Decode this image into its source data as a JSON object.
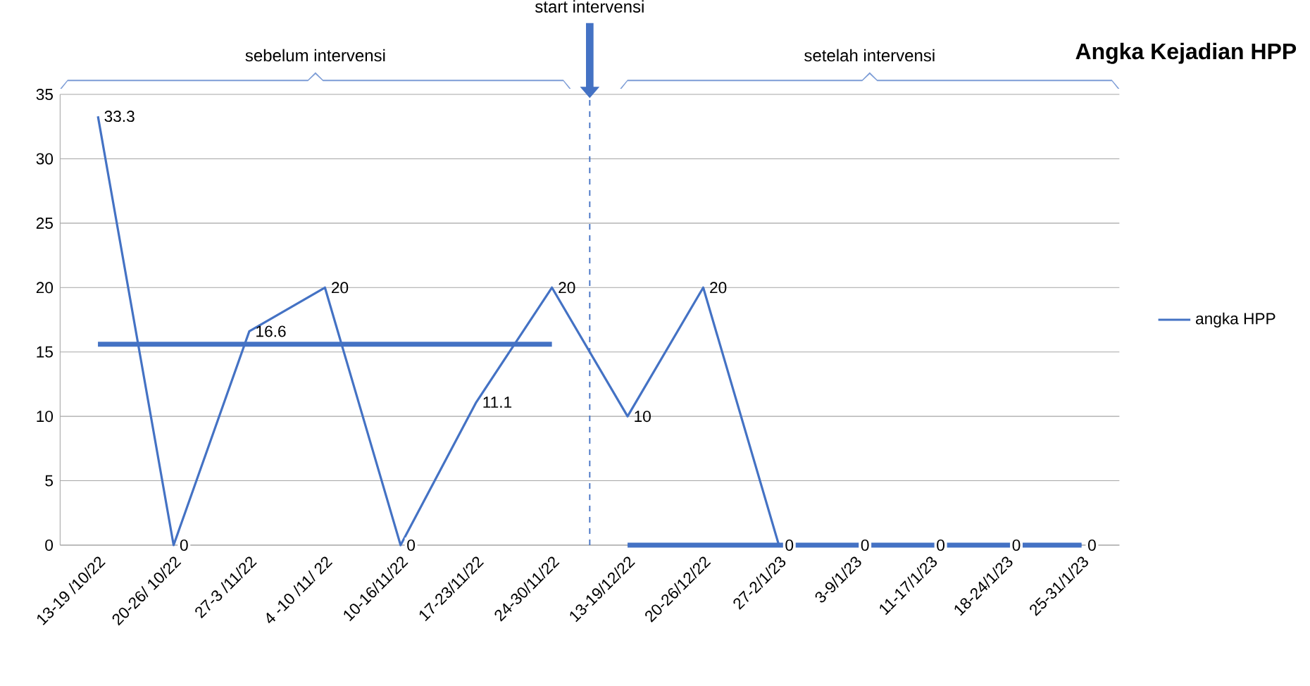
{
  "chart_data": {
    "type": "line",
    "title": "Angka Kejadian HPP",
    "categories": [
      "13-19 /10/22",
      "20-26/ 10/22",
      "27-3 /11/22",
      "4 -10 /11/ 22",
      "10-16/11/22",
      "17-23/11/22",
      "24-30/11/22",
      "13-19/12/22",
      "20-26/12/22",
      "27-2/1/23",
      "3-9/1/23",
      "11-17/1/23",
      "18-24/1/23",
      "25-31/1/23"
    ],
    "series": [
      {
        "name": "angka HPP",
        "color": "#4472c4",
        "values": [
          33.3,
          0,
          16.6,
          20,
          0,
          11.1,
          20,
          10,
          20,
          0,
          0,
          0,
          0,
          0
        ],
        "value_labels": [
          "33.3",
          "0",
          "16.6",
          "20",
          "0",
          "11.1",
          "20",
          "10",
          "20",
          "0",
          "0",
          "0",
          "0",
          "0"
        ]
      },
      {
        "color": "#4472c4",
        "values": [
          15.6,
          15.6,
          15.6,
          15.6,
          15.6,
          15.6,
          15.6,
          null,
          null,
          null,
          null,
          null,
          null,
          null
        ]
      },
      {
        "color": "#4472c4",
        "values": [
          null,
          null,
          null,
          null,
          null,
          null,
          null,
          0,
          0,
          0,
          0,
          0,
          0,
          0
        ]
      }
    ],
    "ylim": [
      0,
      35
    ],
    "yticks": [
      0,
      5,
      10,
      15,
      20,
      25,
      30,
      35
    ],
    "grid": "y",
    "legend": "right",
    "marker": "none",
    "line_style": "solid",
    "annotations": [
      "sebelum intervensi",
      "start  intervensi",
      "setelah intervensi"
    ]
  }
}
